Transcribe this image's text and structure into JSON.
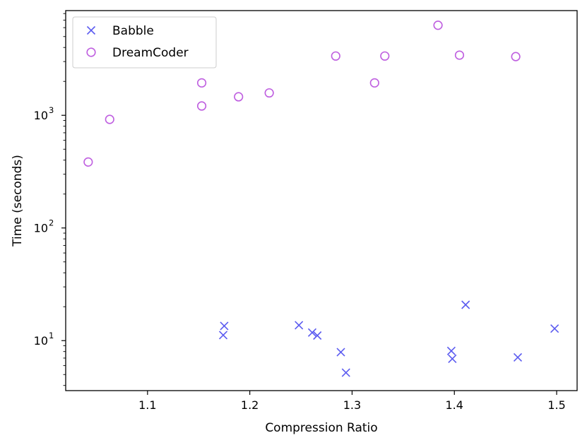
{
  "chart_data": {
    "type": "scatter",
    "title": "",
    "xlabel": "Compression Ratio",
    "ylabel": "Time (seconds)",
    "xlim": [
      1.02,
      1.52
    ],
    "ylim": [
      3.6,
      8500
    ],
    "yscale": "log",
    "grid": false,
    "legend_position": "top-left",
    "x_ticks": [
      {
        "value": 1.1,
        "label": "1.1"
      },
      {
        "value": 1.2,
        "label": "1.2"
      },
      {
        "value": 1.3,
        "label": "1.3"
      },
      {
        "value": 1.4,
        "label": "1.4"
      },
      {
        "value": 1.5,
        "label": "1.5"
      }
    ],
    "y_ticks": [
      {
        "value": 10,
        "base": "10",
        "exp": "1"
      },
      {
        "value": 100,
        "base": "10",
        "exp": "2"
      },
      {
        "value": 1000,
        "base": "10",
        "exp": "3"
      }
    ],
    "series": [
      {
        "name": "Babble",
        "marker": "x",
        "color": "#5b5bf0",
        "points": [
          {
            "x": 1.175,
            "y": 13.5
          },
          {
            "x": 1.174,
            "y": 11.2
          },
          {
            "x": 1.248,
            "y": 13.7
          },
          {
            "x": 1.261,
            "y": 11.8
          },
          {
            "x": 1.266,
            "y": 11.1
          },
          {
            "x": 1.289,
            "y": 7.9
          },
          {
            "x": 1.294,
            "y": 5.2
          },
          {
            "x": 1.397,
            "y": 8.1
          },
          {
            "x": 1.398,
            "y": 6.9
          },
          {
            "x": 1.411,
            "y": 20.8
          },
          {
            "x": 1.462,
            "y": 7.1
          },
          {
            "x": 1.498,
            "y": 12.8
          }
        ]
      },
      {
        "name": "DreamCoder",
        "marker": "o",
        "color": "#bf5fe0",
        "points": [
          {
            "x": 1.042,
            "y": 385
          },
          {
            "x": 1.063,
            "y": 920
          },
          {
            "x": 1.153,
            "y": 1940
          },
          {
            "x": 1.153,
            "y": 1210
          },
          {
            "x": 1.189,
            "y": 1460
          },
          {
            "x": 1.219,
            "y": 1580
          },
          {
            "x": 1.284,
            "y": 3360
          },
          {
            "x": 1.322,
            "y": 1940
          },
          {
            "x": 1.332,
            "y": 3360
          },
          {
            "x": 1.384,
            "y": 6300
          },
          {
            "x": 1.405,
            "y": 3420
          },
          {
            "x": 1.46,
            "y": 3320
          }
        ]
      }
    ]
  }
}
